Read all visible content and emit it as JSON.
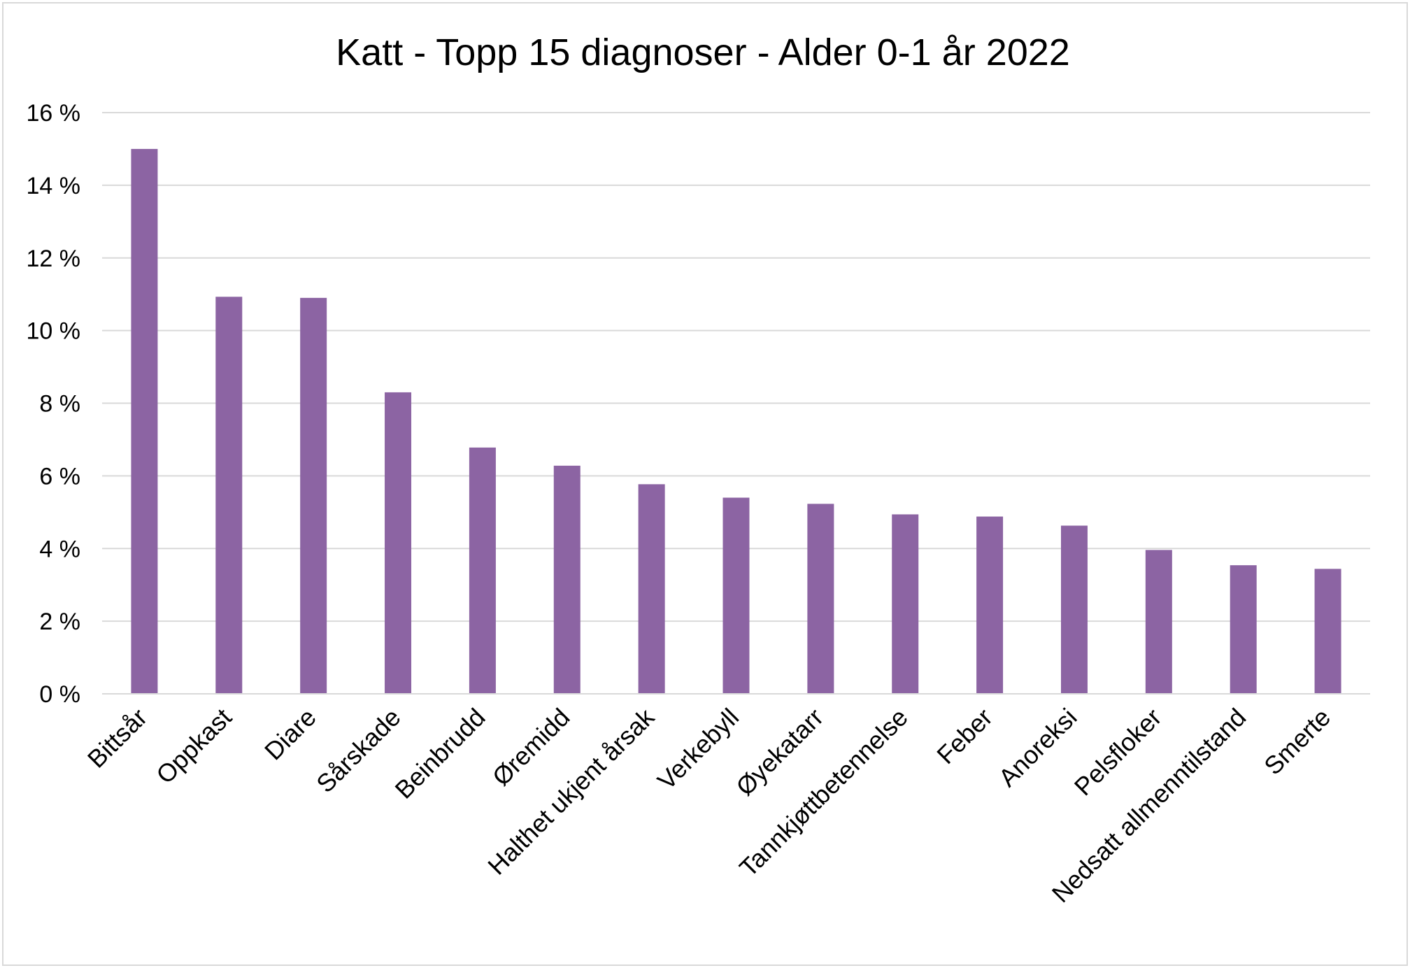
{
  "chart_data": {
    "type": "bar",
    "title": "Katt - Topp 15 diagnoser - Alder 0-1 år 2022",
    "xlabel": "",
    "ylabel": "",
    "categories": [
      "Bittsår",
      "Oppkast",
      "Diare",
      "Sårskade",
      "Beinbrudd",
      "Øremidd",
      "Halthet ukjent årsak",
      "Verkebyll",
      "Øyekatarr",
      "Tannkjøttbetennelse",
      "Feber",
      "Anoreksi",
      "Pelsfloker",
      "Nedsatt allmenntilstand",
      "Smerte"
    ],
    "values": [
      15.0,
      10.93,
      10.9,
      8.3,
      6.78,
      6.28,
      5.77,
      5.4,
      5.23,
      4.94,
      4.88,
      4.63,
      3.96,
      3.54,
      3.44
    ],
    "ylim": [
      0,
      16
    ],
    "yticks": [
      0,
      2,
      4,
      6,
      8,
      10,
      12,
      14,
      16
    ],
    "ytick_labels": [
      "0 %",
      "2 %",
      "4 %",
      "6 %",
      "8 %",
      "10 %",
      "12 %",
      "14 %",
      "16 %"
    ],
    "grid": true,
    "legend": "none",
    "colors": {
      "bar": "#8c64a3",
      "grid": "#d9d9d9",
      "axis": "#d9d9d9",
      "text": "#000000",
      "border": "#d9d9d9"
    }
  }
}
